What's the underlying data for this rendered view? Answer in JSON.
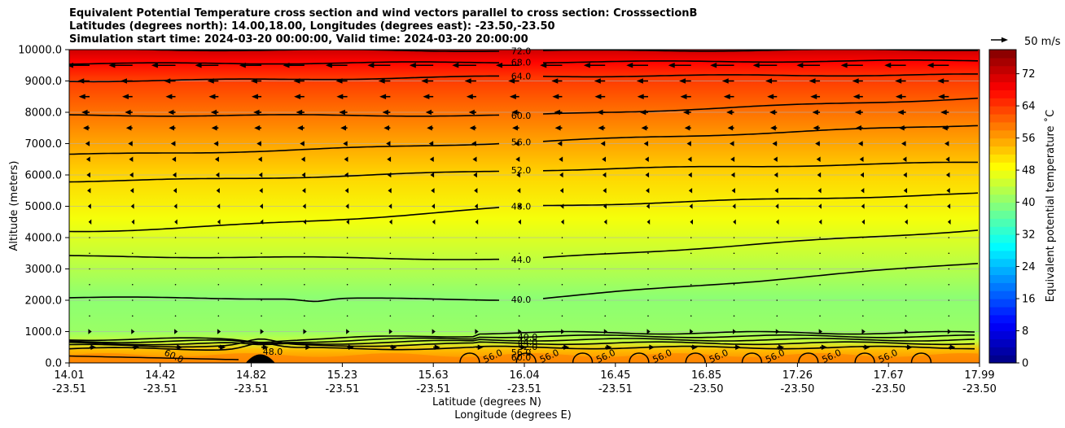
{
  "chart_data": {
    "type": "contourf",
    "title_lines": [
      "Equivalent Potential Temperature cross section and wind vectors parallel to cross section: CrosssectionB",
      "Latitudes (degrees north): 14.00,18.00, Longitudes (degrees east): -23.50,-23.50",
      "Simulation start time: 2024-03-20 00:00:00, Valid time: 2024-03-20 20:00:00"
    ],
    "ylabel": "Altitude (meters)",
    "xlabel_lines": [
      "Latitude (degrees N)",
      "Longitude (degrees E)"
    ],
    "ylim": [
      0,
      10000
    ],
    "y_ticks": [
      {
        "value": 0,
        "label": "0.0"
      },
      {
        "value": 1000,
        "label": "1000.0"
      },
      {
        "value": 2000,
        "label": "2000.0"
      },
      {
        "value": 3000,
        "label": "3000.0"
      },
      {
        "value": 4000,
        "label": "4000.0"
      },
      {
        "value": 5000,
        "label": "5000.0"
      },
      {
        "value": 6000,
        "label": "6000.0"
      },
      {
        "value": 7000,
        "label": "7000.0"
      },
      {
        "value": 8000,
        "label": "8000.0"
      },
      {
        "value": 9000,
        "label": "9000.0"
      },
      {
        "value": 10000,
        "label": "10000.0"
      }
    ],
    "x_ticks": [
      {
        "lat": "14.01",
        "lon": "-23.51"
      },
      {
        "lat": "14.42",
        "lon": "-23.51"
      },
      {
        "lat": "14.82",
        "lon": "-23.51"
      },
      {
        "lat": "15.23",
        "lon": "-23.51"
      },
      {
        "lat": "15.63",
        "lon": "-23.51"
      },
      {
        "lat": "16.04",
        "lon": "-23.51"
      },
      {
        "lat": "16.45",
        "lon": "-23.51"
      },
      {
        "lat": "16.85",
        "lon": "-23.50"
      },
      {
        "lat": "17.26",
        "lon": "-23.50"
      },
      {
        "lat": "17.67",
        "lon": "-23.50"
      },
      {
        "lat": "17.99",
        "lon": "-23.50"
      }
    ],
    "colorbar": {
      "label": "Equivalent potential temperature $^\\circ$C",
      "label_text": "Equivalent potential temperature ˚C",
      "min": 0,
      "max": 78,
      "step": 2,
      "ticks": [
        0,
        8,
        16,
        24,
        32,
        40,
        48,
        56,
        64,
        72
      ]
    },
    "quiver_key": {
      "label": "50 m/s",
      "speed": 50
    },
    "contours": [
      {
        "level": 40,
        "label": "40.0",
        "alt_left": 2080,
        "alt_mid": 2020,
        "alt_right": 3200,
        "dip": 1
      },
      {
        "level": 44,
        "label": "44.0",
        "alt_left": 3400,
        "alt_mid": 3300,
        "alt_right": 4250,
        "dip": 0
      },
      {
        "level": 48,
        "label": "48.0",
        "alt_left": 4200,
        "alt_mid": 5000,
        "alt_right": 5400,
        "dip": 0
      },
      {
        "level": 52,
        "label": "52.0",
        "alt_left": 5800,
        "alt_mid": 6150,
        "alt_right": 6400,
        "dip": 0
      },
      {
        "level": 56,
        "label": "56.0",
        "alt_left": 6650,
        "alt_mid": 7050,
        "alt_right": 7600,
        "dip": 0
      },
      {
        "level": 60,
        "label": "60.0",
        "alt_left": 7900,
        "alt_mid": 7900,
        "alt_right": 8450,
        "dip": 0
      },
      {
        "level": 64,
        "label": "64.0",
        "alt_left": 9000,
        "alt_mid": 9150,
        "alt_right": 9200,
        "dip": 0
      },
      {
        "level": 68,
        "label": "68.0",
        "alt_left": 9550,
        "alt_mid": 9600,
        "alt_right": 9650,
        "dip": 0
      },
      {
        "level": 72,
        "label": "72.0",
        "alt_left": 10000,
        "alt_mid": 9960,
        "alt_right": 10000,
        "dip": 0
      }
    ],
    "theta_profile": [
      {
        "alt": 0,
        "value": 58
      },
      {
        "alt": 400,
        "value": 54
      },
      {
        "alt": 700,
        "value": 44
      },
      {
        "alt": 1000,
        "value": 41
      },
      {
        "alt": 1600,
        "value": 40.4
      },
      {
        "alt": 2100,
        "value": 40
      },
      {
        "alt": 3300,
        "value": 44
      },
      {
        "alt": 4600,
        "value": 48
      },
      {
        "alt": 6000,
        "value": 52
      },
      {
        "alt": 7100,
        "value": 56
      },
      {
        "alt": 8100,
        "value": 60
      },
      {
        "alt": 9100,
        "value": 64
      },
      {
        "alt": 9600,
        "value": 68
      },
      {
        "alt": 10000,
        "value": 72
      }
    ],
    "boundary_layer_labels": [
      "48.0",
      "40.0",
      "44.0",
      "52.0",
      "56.0",
      "60.0"
    ],
    "surface_labels": [
      "60.0",
      "56.0",
      "56.0",
      "56.0",
      "56.0",
      "56.0",
      "56.0",
      "56.0",
      "56.0"
    ],
    "wind_levels": [
      {
        "alt": 9500,
        "u": -40
      },
      {
        "alt": 9000,
        "u": -20
      },
      {
        "alt": 8500,
        "u": -18
      },
      {
        "alt": 8000,
        "u": -14
      },
      {
        "alt": 7500,
        "u": -12
      },
      {
        "alt": 7000,
        "u": -8
      },
      {
        "alt": 6500,
        "u": -6
      },
      {
        "alt": 6000,
        "u": -5
      },
      {
        "alt": 5500,
        "u": -4
      },
      {
        "alt": 5000,
        "u": -3
      },
      {
        "alt": 4500,
        "u": -2
      },
      {
        "alt": 4000,
        "u": -1
      },
      {
        "alt": 3500,
        "u": 0.5
      },
      {
        "alt": 3000,
        "u": 0.5
      },
      {
        "alt": 2500,
        "u": 0.5
      },
      {
        "alt": 2000,
        "u": 0.5
      },
      {
        "alt": 1500,
        "u": 0.5
      },
      {
        "alt": 1000,
        "u": 4
      },
      {
        "alt": 500,
        "u": 12
      }
    ]
  }
}
